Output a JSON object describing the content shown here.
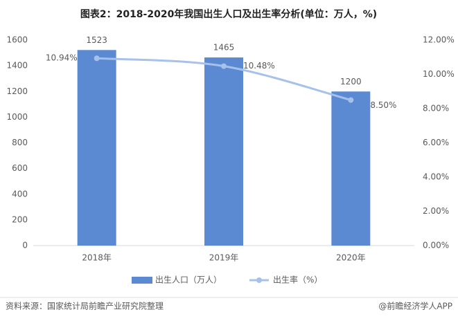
{
  "chart_data": {
    "type": "bar",
    "title": "图表2：2018-2020年我国出生人口及出生率分析(单位：万人，%)",
    "categories": [
      "2018年",
      "2019年",
      "2020年"
    ],
    "series": [
      {
        "name": "出生人口（万人）",
        "type": "bar",
        "color": "#5b8ad3",
        "values": [
          1523,
          1465,
          1200
        ]
      },
      {
        "name": "出生率（%）",
        "type": "line",
        "axis": "y2",
        "color": "#a6c1ea",
        "values": [
          10.94,
          10.48,
          8.5
        ],
        "value_labels": [
          "10.94%",
          "10.48%",
          "8.50%"
        ]
      }
    ],
    "ylim": [
      0,
      1600
    ],
    "yticks": [
      0,
      200,
      400,
      600,
      800,
      1000,
      1200,
      1400,
      1600
    ],
    "y2lim": [
      0,
      12
    ],
    "y2ticks": [
      {
        "value": 0,
        "label": "0.00%"
      },
      {
        "value": 2,
        "label": "2.00%"
      },
      {
        "value": 4,
        "label": "4.00%"
      },
      {
        "value": 6,
        "label": "6.00%"
      },
      {
        "value": 8,
        "label": "8.00%"
      },
      {
        "value": 10,
        "label": "10.00%"
      },
      {
        "value": 12,
        "label": "12.00%"
      }
    ],
    "grid": false,
    "legend": "bottom",
    "source": "资料来源：国家统计局前瞻产业研究院整理",
    "credit": "@前瞻经济学人APP"
  }
}
